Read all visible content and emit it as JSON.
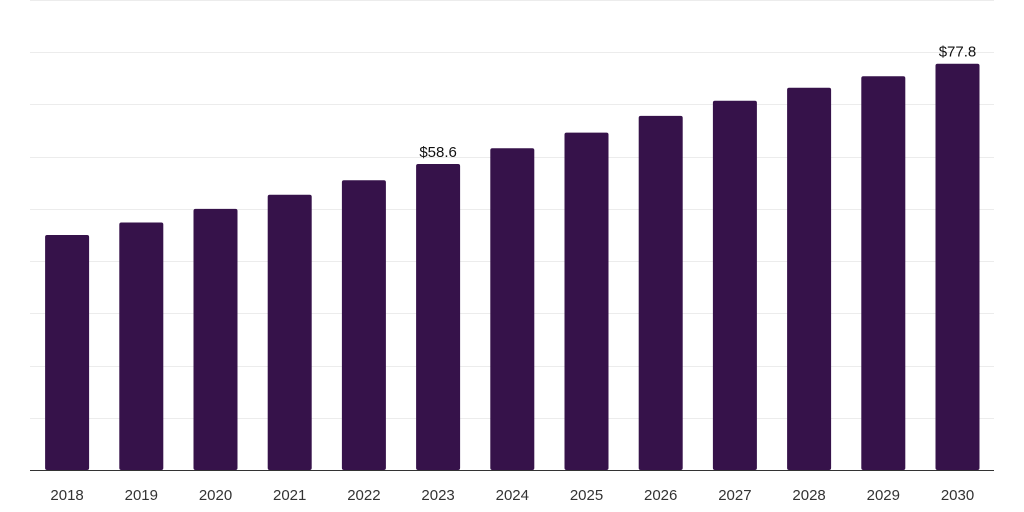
{
  "chart_data": {
    "type": "bar",
    "title": "",
    "xlabel": "",
    "ylabel": "",
    "categories": [
      "2018",
      "2019",
      "2020",
      "2021",
      "2022",
      "2023",
      "2024",
      "2025",
      "2026",
      "2027",
      "2028",
      "2029",
      "2030"
    ],
    "values": [
      45.0,
      47.4,
      50.0,
      52.7,
      55.5,
      58.6,
      61.6,
      64.6,
      67.8,
      70.7,
      73.2,
      75.4,
      77.8
    ],
    "data_labels": [
      {
        "category": "2023",
        "text": "$58.6"
      },
      {
        "category": "2030",
        "text": "$77.8"
      }
    ],
    "ylim": [
      0,
      90
    ],
    "gridlines": [
      0,
      10,
      20,
      30,
      40,
      50,
      60,
      70,
      80,
      90
    ],
    "grid": true,
    "legend": "none",
    "colors": {
      "bar": "#36124a",
      "grid": "#ececec",
      "axis": "#333333"
    }
  }
}
